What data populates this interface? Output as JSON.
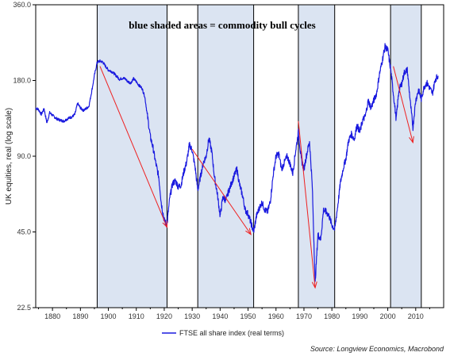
{
  "chart_data": {
    "type": "line",
    "title": "blue shaded areas = commodity bull cycles",
    "ylabel": "UK equities, real (log scale)",
    "xlabel": "",
    "y_scale": "log",
    "ylim": [
      22.5,
      360
    ],
    "xlim": [
      1874,
      2020
    ],
    "y_ticks": [
      "360.0",
      "180.0",
      "90.0",
      "45.0",
      "22.5"
    ],
    "x_ticks": [
      "1880",
      "1890",
      "1900",
      "1910",
      "1920",
      "1930",
      "1940",
      "1950",
      "1960",
      "1970",
      "1980",
      "1990",
      "2000",
      "2010"
    ],
    "grid": false,
    "legend_position": "bottom-center",
    "colors": {
      "series": "#1a1adf",
      "shade": "#dbe4f2",
      "arrow": "#ee2020",
      "border": "#000000"
    },
    "shaded_regions": [
      {
        "start": 1896,
        "end": 1921
      },
      {
        "start": 1932,
        "end": 1952
      },
      {
        "start": 1968,
        "end": 1981
      },
      {
        "start": 2001,
        "end": 2012
      }
    ],
    "arrows": [
      {
        "from": [
          1897,
          205
        ],
        "to": [
          1921,
          47
        ]
      },
      {
        "from": [
          1930,
          96
        ],
        "to": [
          1951,
          44
        ]
      },
      {
        "from": [
          1968,
          124
        ],
        "to": [
          1974,
          27
        ]
      },
      {
        "from": [
          2002,
          205
        ],
        "to": [
          2009,
          102
        ]
      }
    ],
    "series": [
      {
        "name": "FTSE all share index (real terms)",
        "points": [
          [
            1874,
            140
          ],
          [
            1875,
            138
          ],
          [
            1876,
            132
          ],
          [
            1877,
            139
          ],
          [
            1878,
            122
          ],
          [
            1879,
            134
          ],
          [
            1880,
            131
          ],
          [
            1881,
            128
          ],
          [
            1882,
            126
          ],
          [
            1883,
            125
          ],
          [
            1884,
            124
          ],
          [
            1885,
            126
          ],
          [
            1886,
            128
          ],
          [
            1887,
            129
          ],
          [
            1888,
            132
          ],
          [
            1889,
            146
          ],
          [
            1890,
            140
          ],
          [
            1891,
            137
          ],
          [
            1892,
            139
          ],
          [
            1893,
            142
          ],
          [
            1894,
            162
          ],
          [
            1895,
            188
          ],
          [
            1896,
            213
          ],
          [
            1897,
            215
          ],
          [
            1898,
            213
          ],
          [
            1899,
            205
          ],
          [
            1900,
            198
          ],
          [
            1901,
            196
          ],
          [
            1902,
            192
          ],
          [
            1903,
            187
          ],
          [
            1904,
            182
          ],
          [
            1905,
            184
          ],
          [
            1906,
            183
          ],
          [
            1907,
            178
          ],
          [
            1908,
            176
          ],
          [
            1909,
            183
          ],
          [
            1910,
            178
          ],
          [
            1911,
            172
          ],
          [
            1912,
            168
          ],
          [
            1913,
            156
          ],
          [
            1914,
            130
          ],
          [
            1915,
            108
          ],
          [
            1916,
            97
          ],
          [
            1917,
            84
          ],
          [
            1918,
            75
          ],
          [
            1919,
            58
          ],
          [
            1920,
            50
          ],
          [
            1921,
            48
          ],
          [
            1922,
            62
          ],
          [
            1923,
            70
          ],
          [
            1924,
            72
          ],
          [
            1925,
            68
          ],
          [
            1926,
            69
          ],
          [
            1927,
            78
          ],
          [
            1928,
            85
          ],
          [
            1929,
            100
          ],
          [
            1930,
            95
          ],
          [
            1931,
            82
          ],
          [
            1932,
            66
          ],
          [
            1933,
            75
          ],
          [
            1934,
            85
          ],
          [
            1935,
            90
          ],
          [
            1936,
            106
          ],
          [
            1937,
            94
          ],
          [
            1938,
            74
          ],
          [
            1939,
            64
          ],
          [
            1940,
            52
          ],
          [
            1941,
            62
          ],
          [
            1942,
            60
          ],
          [
            1943,
            65
          ],
          [
            1944,
            70
          ],
          [
            1945,
            75
          ],
          [
            1946,
            80
          ],
          [
            1947,
            69
          ],
          [
            1948,
            63
          ],
          [
            1949,
            55
          ],
          [
            1950,
            53
          ],
          [
            1951,
            49
          ],
          [
            1952,
            45
          ],
          [
            1953,
            52
          ],
          [
            1954,
            56
          ],
          [
            1955,
            59
          ],
          [
            1956,
            55
          ],
          [
            1957,
            54
          ],
          [
            1958,
            60
          ],
          [
            1959,
            76
          ],
          [
            1960,
            90
          ],
          [
            1961,
            92
          ],
          [
            1962,
            80
          ],
          [
            1963,
            85
          ],
          [
            1964,
            90
          ],
          [
            1965,
            84
          ],
          [
            1966,
            77
          ],
          [
            1967,
            94
          ],
          [
            1968,
            112
          ],
          [
            1969,
            88
          ],
          [
            1970,
            80
          ],
          [
            1971,
            92
          ],
          [
            1972,
            103
          ],
          [
            1973,
            68
          ],
          [
            1974,
            28
          ],
          [
            1975,
            44
          ],
          [
            1976,
            42
          ],
          [
            1977,
            55
          ],
          [
            1978,
            54
          ],
          [
            1979,
            52
          ],
          [
            1980,
            48
          ],
          [
            1981,
            46
          ],
          [
            1982,
            56
          ],
          [
            1983,
            70
          ],
          [
            1984,
            80
          ],
          [
            1985,
            88
          ],
          [
            1986,
            104
          ],
          [
            1987,
            110
          ],
          [
            1988,
            105
          ],
          [
            1989,
            120
          ],
          [
            1990,
            112
          ],
          [
            1991,
            125
          ],
          [
            1992,
            130
          ],
          [
            1993,
            150
          ],
          [
            1994,
            140
          ],
          [
            1995,
            150
          ],
          [
            1996,
            160
          ],
          [
            1997,
            190
          ],
          [
            1998,
            215
          ],
          [
            1999,
            245
          ],
          [
            2000,
            238
          ],
          [
            2001,
            200
          ],
          [
            2002,
            160
          ],
          [
            2003,
            126
          ],
          [
            2004,
            165
          ],
          [
            2005,
            175
          ],
          [
            2006,
            195
          ],
          [
            2007,
            198
          ],
          [
            2008,
            150
          ],
          [
            2009,
            117
          ],
          [
            2010,
            150
          ],
          [
            2011,
            165
          ],
          [
            2012,
            152
          ],
          [
            2013,
            170
          ],
          [
            2014,
            176
          ],
          [
            2015,
            168
          ],
          [
            2016,
            160
          ],
          [
            2017,
            182
          ],
          [
            2018,
            188
          ]
        ]
      }
    ],
    "legend_label": "FTSE all share index (real terms)",
    "source": "Source: Longview Economics, Macrobond"
  }
}
